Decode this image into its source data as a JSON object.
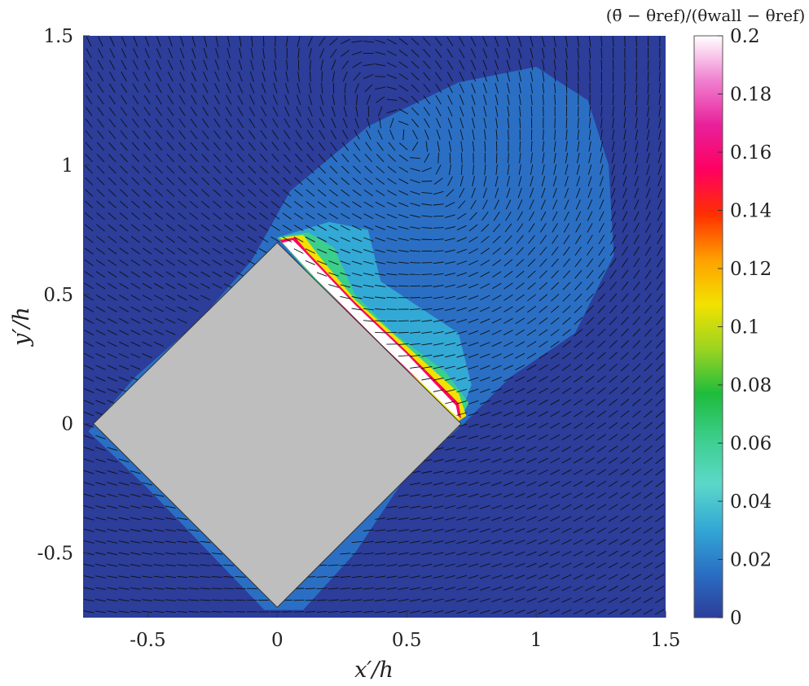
{
  "chart_data": {
    "type": "heatmap",
    "title": "",
    "xlabel": "x′/h",
    "ylabel": "y′/h",
    "xlim": [
      -0.75,
      1.5
    ],
    "ylim": [
      -0.75,
      1.5
    ],
    "xticks": [
      -0.5,
      0,
      0.5,
      1,
      1.5
    ],
    "xtick_labels": [
      "-0.5",
      "0",
      "0.5",
      "1",
      "1.5"
    ],
    "yticks": [
      -0.5,
      0,
      0.5,
      1,
      1.5
    ],
    "ytick_labels": [
      "-0.5",
      "0",
      "0.5",
      "1",
      "1.5"
    ],
    "colorbar": {
      "label": "(θ̄ − θref)/(θwall − θref)",
      "range": [
        0,
        0.2
      ],
      "ticks": [
        0,
        0.02,
        0.04,
        0.06,
        0.08,
        0.1,
        0.12,
        0.14,
        0.16,
        0.18,
        0.2
      ],
      "tick_labels": [
        "0",
        "0.02",
        "0.04",
        "0.06",
        "0.08",
        "0.1",
        "0.12",
        "0.14",
        "0.16",
        "0.18",
        "0.2"
      ],
      "colors": [
        "#2c3d9a",
        "#2a6fc4",
        "#33a9d6",
        "#5cd8c8",
        "#3cce8c",
        "#1ebc3c",
        "#9bd420",
        "#f2e200",
        "#ffa000",
        "#ff3000",
        "#ff0060",
        "#e8209a",
        "#f080d0",
        "#ffffff"
      ]
    },
    "obstacle": {
      "shape": "square rotated 45°",
      "vertices": [
        [
          -0.71,
          0.0
        ],
        [
          0.0,
          0.7
        ],
        [
          0.71,
          0.0
        ],
        [
          0.0,
          -0.71
        ]
      ],
      "fill": "#bebebe"
    },
    "plume_regions": [
      {
        "level": 0.008,
        "polygon": [
          [
            -0.73,
            -0.03
          ],
          [
            -0.55,
            0.18
          ],
          [
            -0.3,
            0.4
          ],
          [
            -0.1,
            0.63
          ],
          [
            0.05,
            0.9
          ],
          [
            0.35,
            1.15
          ],
          [
            0.7,
            1.32
          ],
          [
            1.0,
            1.38
          ],
          [
            1.2,
            1.25
          ],
          [
            1.28,
            1.0
          ],
          [
            1.3,
            0.65
          ],
          [
            1.15,
            0.35
          ],
          [
            0.9,
            0.18
          ],
          [
            0.72,
            0.0
          ],
          [
            0.5,
            -0.2
          ],
          [
            0.3,
            -0.5
          ],
          [
            0.1,
            -0.72
          ],
          [
            -0.05,
            -0.72
          ],
          [
            -0.5,
            -0.25
          ],
          [
            -0.73,
            -0.03
          ]
        ]
      },
      {
        "level": 0.02,
        "polygon": [
          [
            -0.05,
            0.72
          ],
          [
            0.15,
            0.9
          ],
          [
            0.35,
            0.95
          ],
          [
            0.5,
            0.95
          ],
          [
            0.55,
            0.8
          ],
          [
            0.6,
            0.6
          ],
          [
            0.75,
            0.55
          ],
          [
            0.95,
            0.6
          ],
          [
            1.0,
            0.4
          ],
          [
            0.9,
            0.3
          ],
          [
            0.8,
            0.2
          ],
          [
            0.72,
            0.02
          ],
          [
            0.5,
            0.2
          ],
          [
            0.3,
            0.45
          ],
          [
            0.1,
            0.62
          ]
        ]
      },
      {
        "level": 0.035,
        "polygon": [
          [
            0.0,
            0.72
          ],
          [
            0.2,
            0.78
          ],
          [
            0.35,
            0.75
          ],
          [
            0.4,
            0.55
          ],
          [
            0.55,
            0.45
          ],
          [
            0.7,
            0.35
          ],
          [
            0.75,
            0.15
          ],
          [
            0.7,
            0.02
          ],
          [
            0.45,
            0.25
          ],
          [
            0.2,
            0.5
          ]
        ]
      },
      {
        "level": 0.06,
        "polygon": [
          [
            0.0,
            0.72
          ],
          [
            0.12,
            0.74
          ],
          [
            0.22,
            0.68
          ],
          [
            0.3,
            0.5
          ],
          [
            0.45,
            0.35
          ],
          [
            0.65,
            0.2
          ],
          [
            0.74,
            0.08
          ],
          [
            0.7,
            0.01
          ],
          [
            0.4,
            0.3
          ],
          [
            0.15,
            0.55
          ]
        ]
      },
      {
        "level": 0.1,
        "polygon": [
          [
            0.01,
            0.72
          ],
          [
            0.1,
            0.73
          ],
          [
            0.16,
            0.65
          ],
          [
            0.3,
            0.48
          ],
          [
            0.5,
            0.3
          ],
          [
            0.7,
            0.12
          ],
          [
            0.73,
            0.03
          ],
          [
            0.7,
            0.01
          ],
          [
            0.35,
            0.35
          ],
          [
            0.1,
            0.62
          ]
        ]
      },
      {
        "level": 0.16,
        "polygon": [
          [
            0.01,
            0.71
          ],
          [
            0.07,
            0.72
          ],
          [
            0.12,
            0.66
          ],
          [
            0.3,
            0.47
          ],
          [
            0.5,
            0.28
          ],
          [
            0.7,
            0.08
          ],
          [
            0.71,
            0.02
          ],
          [
            0.4,
            0.3
          ],
          [
            0.15,
            0.56
          ]
        ]
      },
      {
        "level": 0.2,
        "polygon": [
          [
            0.02,
            0.7
          ],
          [
            0.06,
            0.71
          ],
          [
            0.1,
            0.67
          ],
          [
            0.3,
            0.46
          ],
          [
            0.5,
            0.27
          ],
          [
            0.69,
            0.07
          ],
          [
            0.7,
            0.02
          ],
          [
            0.4,
            0.31
          ],
          [
            0.15,
            0.56
          ]
        ]
      }
    ]
  }
}
